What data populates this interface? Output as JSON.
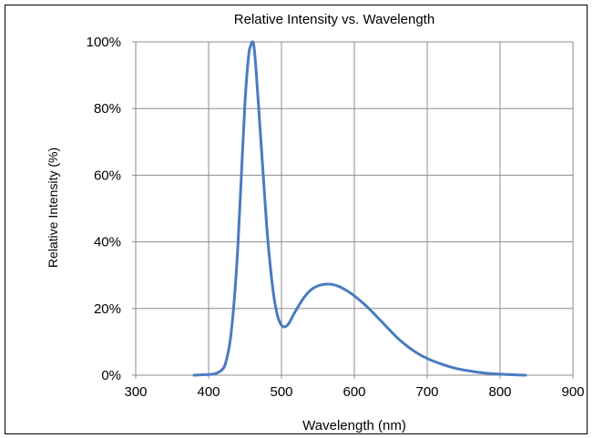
{
  "chart_data": {
    "type": "line",
    "title": "Relative Intensity vs. Wavelength",
    "xlabel": "Wavelength (nm)",
    "ylabel": "Relative Intensity (%)",
    "xlim": [
      300,
      900
    ],
    "ylim": [
      0,
      100
    ],
    "xticks": [
      300,
      400,
      500,
      600,
      700,
      800,
      900
    ],
    "xtick_labels": [
      "300",
      "400",
      "500",
      "600",
      "700",
      "800",
      "900"
    ],
    "yticks": [
      0,
      20,
      40,
      60,
      80,
      100
    ],
    "ytick_labels": [
      "0%",
      "20%",
      "40%",
      "60%",
      "80%",
      "100%"
    ],
    "grid": true,
    "legend": "none",
    "series": [
      {
        "color": "#4a7bbf",
        "x": [
          380,
          400,
          410,
          420,
          425,
          430,
          435,
          440,
          445,
          450,
          455,
          458,
          460,
          462,
          465,
          470,
          475,
          480,
          485,
          490,
          495,
          500,
          505,
          510,
          515,
          520,
          530,
          540,
          550,
          560,
          570,
          580,
          590,
          600,
          610,
          620,
          640,
          660,
          680,
          700,
          720,
          740,
          760,
          780,
          800,
          820,
          835
        ],
        "y": [
          0,
          0.2,
          0.5,
          2,
          5,
          11,
          22,
          38,
          60,
          82,
          96,
          99,
          100,
          99,
          92,
          76,
          60,
          44,
          32,
          23,
          17.5,
          15,
          14.5,
          15.5,
          17.5,
          19.5,
          23,
          25.5,
          26.8,
          27.3,
          27.2,
          26.5,
          25.3,
          23.8,
          22,
          20,
          15.5,
          11,
          7.5,
          5,
          3.3,
          2,
          1.2,
          0.6,
          0.3,
          0.1,
          0
        ]
      }
    ]
  }
}
